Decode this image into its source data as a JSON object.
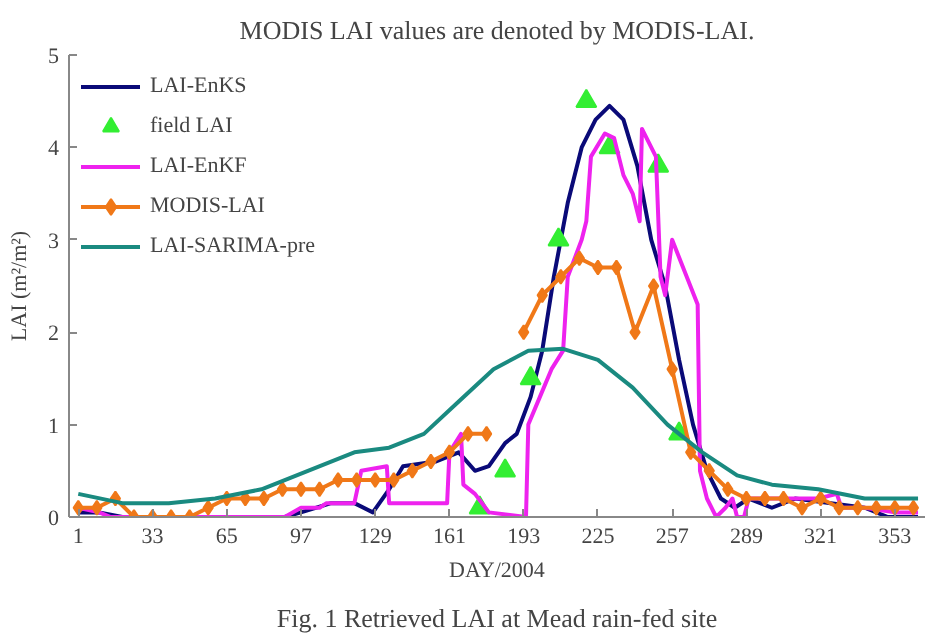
{
  "chart_data": {
    "type": "line",
    "xlabel": "DAY/2004",
    "ylabel": "LAI (m²/m²)",
    "annotations": [
      "MODIS LAI values are denoted by MODIS-LAI.",
      "Fig. 1 Retrieved LAI at Mead rain-fed site"
    ],
    "xlim": [
      -3,
      366
    ],
    "ylim": [
      0,
      5
    ],
    "xticks": [
      1,
      33,
      65,
      97,
      129,
      161,
      193,
      225,
      257,
      289,
      321,
      353
    ],
    "yticks": [
      0,
      1,
      2,
      3,
      4,
      5
    ],
    "grid": false,
    "legend": "top left",
    "line_style": "solid",
    "series": [
      {
        "name": "LAI-EnKS",
        "color": "#0a0a78",
        "marker": "none",
        "x": [
          1,
          10,
          20,
          60,
          90,
          97,
          110,
          120,
          128,
          135,
          141,
          155,
          165,
          172,
          178,
          185,
          190,
          196,
          201,
          206,
          212,
          218,
          224,
          230,
          236,
          242,
          248,
          254,
          260,
          266,
          272,
          278,
          284,
          290,
          300,
          310,
          340,
          350,
          363
        ],
        "values": [
          0.05,
          0.05,
          0,
          0,
          0,
          0.05,
          0.15,
          0.15,
          0.05,
          0.3,
          0.55,
          0.6,
          0.7,
          0.5,
          0.55,
          0.8,
          0.9,
          1.3,
          1.8,
          2.6,
          3.4,
          4.0,
          4.3,
          4.45,
          4.3,
          3.8,
          3.0,
          2.5,
          1.7,
          1.0,
          0.5,
          0.2,
          0.1,
          0.2,
          0.1,
          0.2,
          0.1,
          0,
          0
        ]
      },
      {
        "name": "field LAI",
        "type": "scatter",
        "color": "#33ee33",
        "marker": "triangle",
        "x": [
          174,
          185,
          196,
          208,
          220,
          230,
          251,
          260
        ],
        "values": [
          0.1,
          0.5,
          1.5,
          3.0,
          4.5,
          4.0,
          3.8,
          0.9
        ]
      },
      {
        "name": "LAI-EnKF",
        "color": "#ee22ee",
        "marker": "none",
        "x": [
          1,
          10,
          15,
          90,
          97,
          105,
          108,
          120,
          123,
          134,
          135,
          160,
          161,
          166,
          167,
          172,
          178,
          194,
          195,
          200,
          205,
          210,
          212,
          218,
          220,
          222,
          228,
          232,
          236,
          240,
          243,
          244,
          250,
          252,
          254,
          257,
          268,
          269,
          272,
          276,
          280,
          283,
          285,
          288,
          290,
          320,
          328,
          330,
          340,
          353,
          363
        ],
        "values": [
          0.1,
          0.05,
          0,
          0,
          0.1,
          0.1,
          0.15,
          0.15,
          0.5,
          0.55,
          0.15,
          0.15,
          0.7,
          0.9,
          0.35,
          0.25,
          0.05,
          0,
          1.0,
          1.3,
          1.6,
          1.8,
          2.6,
          3.0,
          3.2,
          3.9,
          4.15,
          4.1,
          3.7,
          3.5,
          3.2,
          4.2,
          3.9,
          2.6,
          2.4,
          3.0,
          2.3,
          0.5,
          0.2,
          0,
          0.1,
          0.2,
          0,
          0,
          0.2,
          0.2,
          0.25,
          0.1,
          0.1,
          0.05,
          0.05
        ]
      },
      {
        "name": "MODIS-LAI",
        "color": "#f07818",
        "marker": "diamond",
        "x": [
          1,
          9,
          17,
          25,
          33,
          41,
          49,
          57,
          65,
          73,
          81,
          89,
          97,
          105,
          113,
          121,
          129,
          137,
          145,
          153,
          161,
          169,
          177,
          185,
          193,
          201,
          209,
          217,
          225,
          233,
          241,
          249,
          257,
          265,
          273,
          281,
          289,
          297,
          305,
          313,
          321,
          329,
          337,
          345,
          353,
          361
        ],
        "values": [
          0.1,
          0.1,
          0.2,
          0,
          0,
          0,
          0,
          0.1,
          0.2,
          0.2,
          0.2,
          0.3,
          0.3,
          0.3,
          0.4,
          0.4,
          0.4,
          0.4,
          0.5,
          0.6,
          0.7,
          0.9,
          0.9,
          null,
          2.0,
          2.4,
          2.6,
          2.8,
          2.7,
          2.7,
          2.0,
          2.5,
          1.6,
          0.7,
          0.5,
          0.3,
          0.2,
          0.2,
          0.2,
          0.1,
          0.2,
          0.1,
          0.1,
          0.1,
          0.1,
          0.1
        ]
      },
      {
        "name": "LAI-SARIMA-pre",
        "color": "#1a8a80",
        "marker": "none",
        "x": [
          1,
          20,
          40,
          60,
          80,
          100,
          120,
          135,
          150,
          165,
          180,
          195,
          210,
          225,
          240,
          255,
          270,
          285,
          300,
          320,
          340,
          363
        ],
        "values": [
          0.25,
          0.15,
          0.15,
          0.2,
          0.3,
          0.5,
          0.7,
          0.75,
          0.9,
          1.25,
          1.6,
          1.8,
          1.82,
          1.7,
          1.4,
          1.0,
          0.7,
          0.45,
          0.35,
          0.3,
          0.2,
          0.2
        ]
      }
    ]
  }
}
